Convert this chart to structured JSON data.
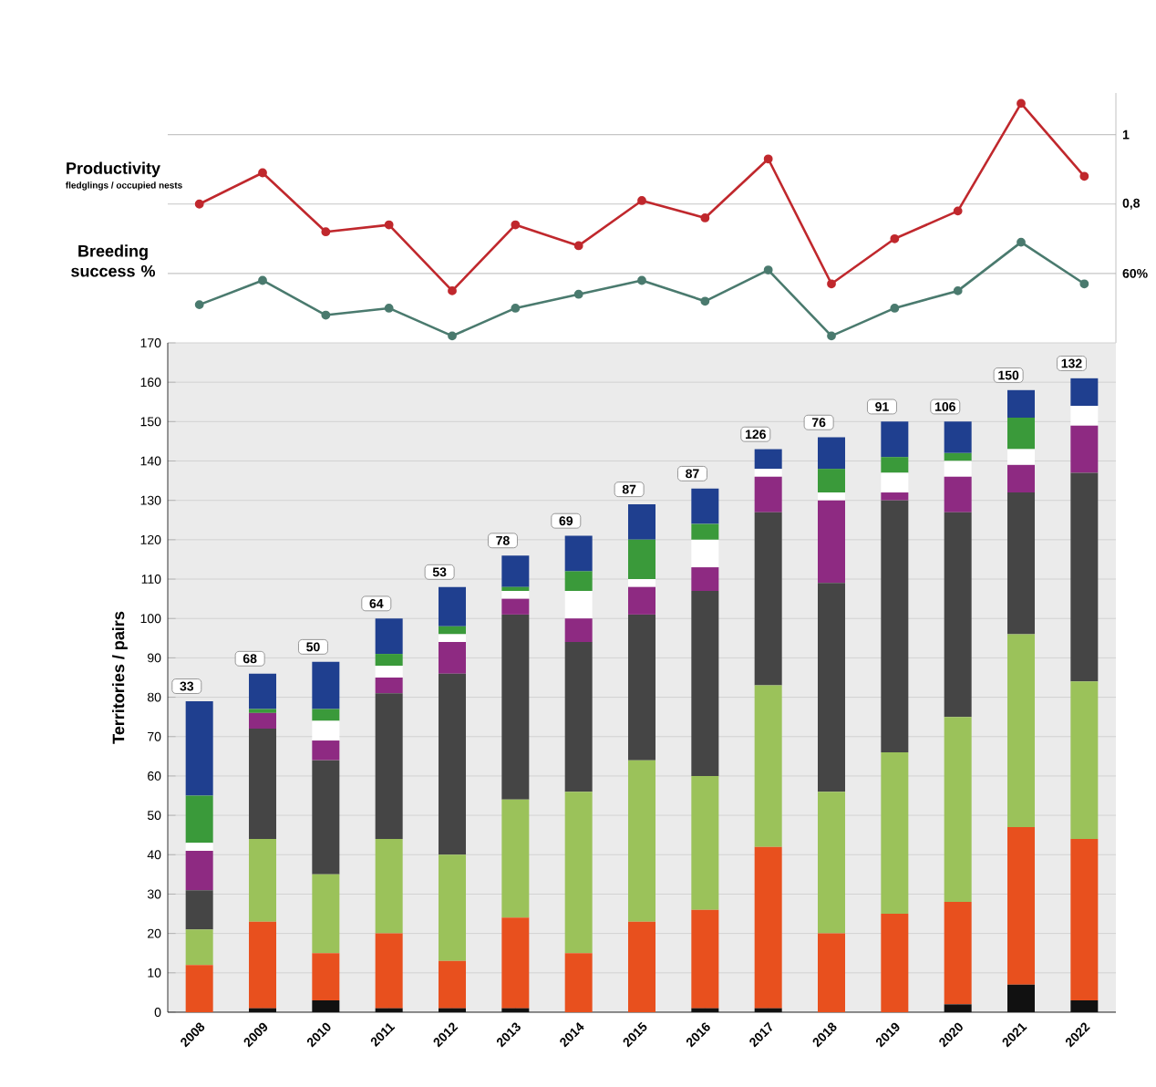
{
  "chart_data": [
    {
      "type": "line",
      "categories": [
        "2008",
        "2009",
        "2010",
        "2011",
        "2012",
        "2013",
        "2014",
        "2015",
        "2016",
        "2017",
        "2018",
        "2019",
        "2020",
        "2021",
        "2022"
      ],
      "series": [
        {
          "name": "Productivity",
          "color": "#c0282d",
          "values": [
            0.8,
            0.89,
            0.72,
            0.74,
            0.55,
            0.74,
            0.68,
            0.81,
            0.76,
            0.93,
            0.57,
            0.7,
            0.78,
            1.09,
            0.88
          ]
        },
        {
          "name": "Breeding success %",
          "color": "#4a7a6e",
          "values": [
            0.51,
            0.58,
            0.48,
            0.5,
            0.42,
            0.5,
            0.54,
            0.58,
            0.52,
            0.61,
            0.42,
            0.5,
            0.55,
            0.69,
            0.57
          ]
        }
      ],
      "annotations": [
        "fledglings / occupied nests"
      ],
      "ylim": [
        0.4,
        1.12
      ],
      "yticks": [
        {
          "value": 0.6,
          "label": "60%"
        },
        {
          "value": 0.8,
          "label": "0,8"
        },
        {
          "value": 1,
          "label": "1"
        }
      ],
      "tick_labels": "y",
      "grid": "y",
      "marker": "circle",
      "line_style": "solid"
    },
    {
      "type": "bar",
      "stacked": true,
      "categories": [
        "2008",
        "2009",
        "2010",
        "2011",
        "2012",
        "2013",
        "2014",
        "2015",
        "2016",
        "2017",
        "2018",
        "2019",
        "2020",
        "2021",
        "2022"
      ],
      "series": [
        {
          "color": "#111111",
          "values": [
            0,
            1,
            3,
            1,
            1,
            1,
            0,
            0,
            1,
            1,
            0,
            0,
            2,
            7,
            3
          ]
        },
        {
          "color": "#e8501e",
          "values": [
            12,
            22,
            12,
            19,
            12,
            23,
            15,
            23,
            25,
            41,
            20,
            25,
            26,
            40,
            41
          ]
        },
        {
          "color": "#9bc25a",
          "values": [
            9,
            21,
            20,
            24,
            27,
            30,
            41,
            41,
            34,
            41,
            36,
            41,
            47,
            49,
            40
          ]
        },
        {
          "color": "#454545",
          "values": [
            10,
            28,
            29,
            37,
            46,
            47,
            38,
            37,
            47,
            44,
            53,
            64,
            52,
            36,
            53
          ]
        },
        {
          "color": "#8e2a82",
          "values": [
            10,
            4,
            5,
            4,
            8,
            4,
            6,
            7,
            6,
            9,
            21,
            2,
            9,
            7,
            12
          ]
        },
        {
          "color": "#ffffff",
          "values": [
            2,
            0,
            5,
            3,
            2,
            2,
            7,
            2,
            7,
            2,
            2,
            5,
            4,
            4,
            5
          ]
        },
        {
          "color": "#3a9a3a",
          "values": [
            12,
            1,
            3,
            3,
            2,
            1,
            5,
            10,
            4,
            0,
            6,
            4,
            2,
            8,
            0
          ]
        },
        {
          "color": "#1f3f8f",
          "values": [
            24,
            9,
            12,
            9,
            10,
            8,
            9,
            9,
            9,
            5,
            8,
            9,
            8,
            7,
            7
          ]
        }
      ],
      "ylabel": "Territories / pairs",
      "ylim": [
        0,
        170
      ],
      "yticks": [
        0,
        10,
        20,
        30,
        40,
        50,
        60,
        70,
        80,
        90,
        100,
        110,
        120,
        130,
        140,
        150,
        160,
        170
      ],
      "grid": "y",
      "annotations": [
        "33",
        "68",
        "50",
        "64",
        "53",
        "78",
        "69",
        "87",
        "87",
        "126",
        "76",
        "91",
        "106",
        "150",
        "132"
      ]
    }
  ]
}
